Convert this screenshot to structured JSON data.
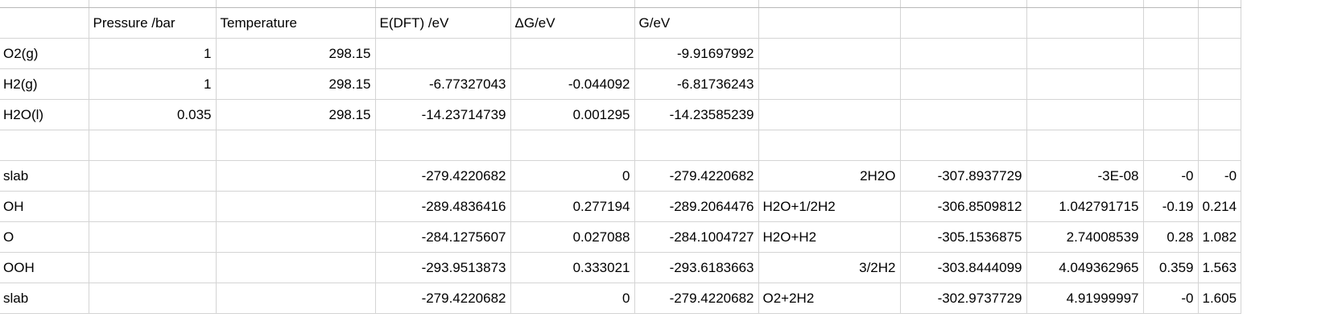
{
  "sheet": {
    "header": [
      "",
      "Pressure /bar",
      "Temperature",
      "E(DFT) /eV",
      "ΔG/eV",
      "G/eV",
      "",
      "",
      "",
      "",
      ""
    ],
    "rows": [
      [
        "O2(g)",
        "1",
        "298.15",
        "",
        "",
        "-9.91697992",
        "",
        "",
        "",
        "",
        ""
      ],
      [
        "H2(g)",
        "1",
        "298.15",
        "-6.77327043",
        "-0.044092",
        "-6.81736243",
        "",
        "",
        "",
        "",
        ""
      ],
      [
        "H2O(l)",
        "0.035",
        "298.15",
        "-14.23714739",
        "0.001295",
        "-14.23585239",
        "",
        "",
        "",
        "",
        ""
      ],
      [
        "",
        "",
        "",
        "",
        "",
        "",
        "",
        "",
        "",
        "",
        ""
      ],
      [
        "slab",
        "",
        "",
        "-279.4220682",
        "0",
        "-279.4220682",
        "2H2O",
        "-307.8937729",
        "-3E-08",
        "-0",
        "-0"
      ],
      [
        "OH",
        "",
        "",
        "-289.4836416",
        "0.277194",
        "-289.2064476",
        "H2O+1/2H2",
        "-306.8509812",
        "1.042791715",
        "-0.19",
        "0.214"
      ],
      [
        "O",
        "",
        "",
        "-284.1275607",
        "0.027088",
        "-284.1004727",
        "H2O+H2",
        "-305.1536875",
        "2.74008539",
        "0.28",
        "1.082"
      ],
      [
        "OOH",
        "",
        "",
        "-293.9513873",
        "0.333021",
        "-293.6183663",
        "3/2H2",
        "-303.8444099",
        "4.049362965",
        "0.359",
        "1.563"
      ],
      [
        "slab",
        "",
        "",
        "-279.4220682",
        "0",
        "-279.4220682",
        "O2+2H2",
        "-302.9737729",
        "4.91999997",
        "-0",
        "1.605"
      ]
    ]
  }
}
